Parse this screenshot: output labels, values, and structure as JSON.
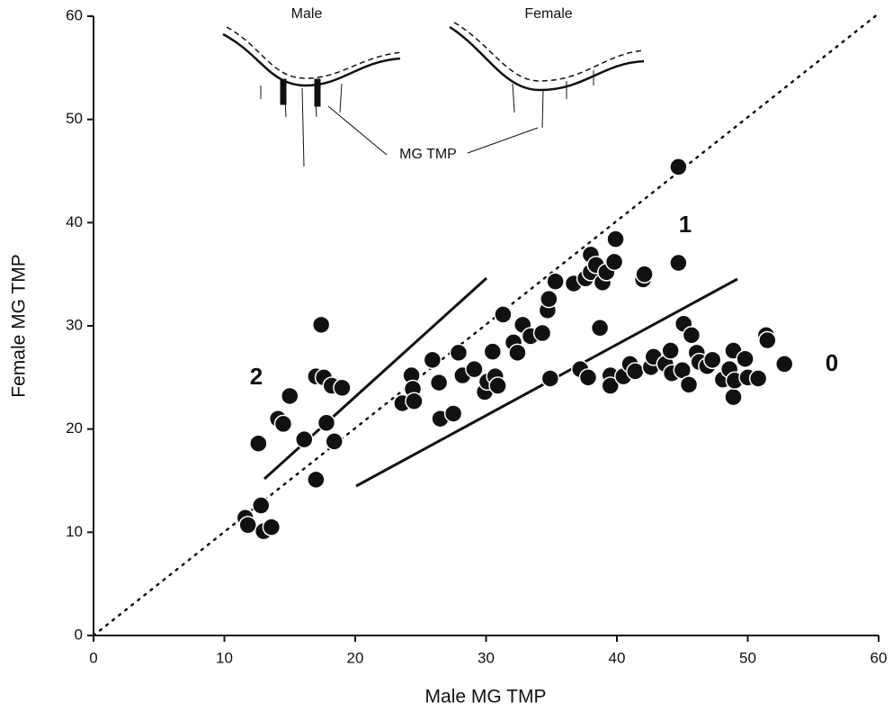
{
  "chart_data": {
    "type": "scatter",
    "x_label": "Male MG TMP",
    "y_label": "Female MG TMP",
    "xlim": [
      0,
      60
    ],
    "ylim": [
      0,
      60
    ],
    "xticks": [
      0,
      10,
      20,
      30,
      40,
      50,
      60
    ],
    "yticks": [
      0,
      10,
      20,
      30,
      40,
      50,
      60
    ],
    "grid": false,
    "color": "#111111",
    "annotations": [
      "2",
      "1",
      "0",
      "Male",
      "Female",
      "MG TMP"
    ],
    "x": [
      11.6,
      11.8,
      12.8,
      13,
      13.6,
      12.6,
      14.1,
      14.5,
      15,
      16.1,
      17,
      17,
      17.4,
      17.6,
      17.8,
      18.2,
      18.4,
      19,
      23.6,
      24.3,
      24.4,
      24.5,
      25.9,
      26.4,
      26.5,
      27.5,
      27.9,
      28.2,
      29.1,
      29.9,
      30.1,
      30.5,
      30.7,
      30.9,
      31.3,
      32.1,
      32.4,
      32.8,
      33.4,
      34.3,
      34.7,
      34.8,
      34.9,
      35.3,
      36.7,
      37.2,
      37.6,
      37.8,
      38,
      38,
      38.4,
      38.7,
      38.9,
      39.2,
      39.5,
      39.5,
      39.8,
      39.9,
      40.5,
      41,
      41.4,
      42,
      42.1,
      42.6,
      42.8,
      43.7,
      44.1,
      44.2,
      44.7,
      44.7,
      45,
      45.1,
      45.5,
      45.7,
      46.1,
      46.3,
      46.9,
      47.3,
      48.1,
      48.6,
      48.9,
      48.9,
      49,
      49.8,
      50,
      50.8,
      51.4,
      51.5,
      52.8
    ],
    "y": [
      11.4,
      10.7,
      12.6,
      10.1,
      10.5,
      18.6,
      21,
      20.5,
      23.2,
      19,
      15.1,
      25.1,
      30.1,
      25,
      20.6,
      24.2,
      18.8,
      24,
      22.5,
      25.2,
      23.9,
      22.7,
      26.7,
      24.5,
      21,
      21.5,
      27.4,
      25.2,
      25.8,
      23.6,
      24.6,
      27.5,
      25.1,
      24.2,
      31.1,
      28.4,
      27.4,
      30.1,
      29,
      29.3,
      31.5,
      32.6,
      24.9,
      34.3,
      34.1,
      25.8,
      34.6,
      25,
      36.9,
      35.2,
      35.9,
      29.8,
      34.2,
      35.2,
      25.2,
      24.2,
      36.2,
      38.4,
      25.1,
      26.3,
      25.6,
      34.5,
      35,
      26,
      27,
      26.3,
      27.6,
      25.4,
      36.1,
      45.4,
      25.7,
      30.2,
      24.3,
      29.1,
      27.4,
      26.5,
      26.1,
      26.7,
      24.8,
      25.8,
      27.6,
      23.1,
      24.7,
      26.8,
      25,
      24.9,
      29.1,
      28.6,
      26.3
    ]
  }
}
